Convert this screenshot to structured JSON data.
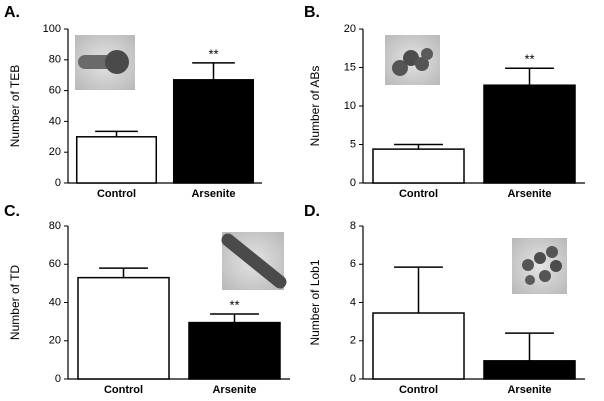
{
  "chart_data": [
    {
      "type": "bar",
      "panel_label": "A.",
      "ylabel": "Number of TEB",
      "categories": [
        "Control",
        "Arsenite"
      ],
      "values": [
        30,
        67
      ],
      "errors": [
        3.5,
        11
      ],
      "colors": [
        "#ffffff",
        "#000000"
      ],
      "value_annotations": [
        null,
        "**"
      ],
      "ylim": [
        0,
        100
      ],
      "yticks": [
        0,
        20,
        40,
        60,
        80,
        100
      ]
    },
    {
      "type": "bar",
      "panel_label": "B.",
      "ylabel": "Number of ABs",
      "categories": [
        "Control",
        "Arsenite"
      ],
      "values": [
        4.4,
        12.7
      ],
      "errors": [
        0.6,
        2.2
      ],
      "colors": [
        "#ffffff",
        "#000000"
      ],
      "value_annotations": [
        null,
        "**"
      ],
      "ylim": [
        0,
        20
      ],
      "yticks": [
        0,
        5,
        10,
        15,
        20
      ]
    },
    {
      "type": "bar",
      "panel_label": "C.",
      "ylabel": "Number of TD",
      "categories": [
        "Control",
        "Arsenite"
      ],
      "values": [
        53,
        29.5
      ],
      "errors": [
        5,
        4.5
      ],
      "colors": [
        "#ffffff",
        "#000000"
      ],
      "value_annotations": [
        null,
        "**"
      ],
      "ylim": [
        0,
        80
      ],
      "yticks": [
        0,
        20,
        40,
        60,
        80
      ]
    },
    {
      "type": "bar",
      "panel_label": "D.",
      "ylabel": "Number of Lob1",
      "categories": [
        "Control",
        "Arsenite"
      ],
      "values": [
        3.45,
        0.95
      ],
      "errors": [
        2.4,
        1.45
      ],
      "colors": [
        "#ffffff",
        "#000000"
      ],
      "value_annotations": [
        null,
        null
      ],
      "ylim": [
        0,
        8
      ],
      "yticks": [
        0,
        2,
        4,
        6,
        8
      ]
    }
  ]
}
